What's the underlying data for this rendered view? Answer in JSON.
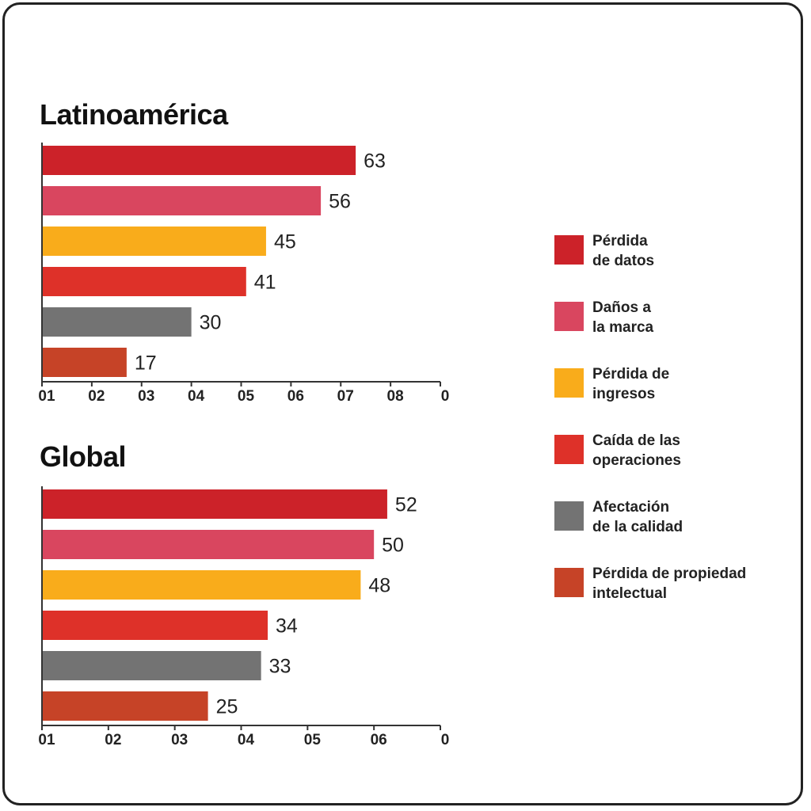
{
  "chart_data": [
    {
      "type": "bar",
      "orientation": "horizontal",
      "title": "Latinoamérica",
      "categories": [
        "Pérdida de datos",
        "Daños a la marca",
        "Pérdida de ingresos",
        "Caída de las operaciones",
        "Afectación de la calidad",
        "Pérdida de propiedad intelectual"
      ],
      "values": [
        63,
        56,
        45,
        41,
        30,
        17
      ],
      "colors": [
        "#cc2229",
        "#d9465f",
        "#f9ac1b",
        "#de3129",
        "#737373",
        "#c64327"
      ],
      "xticks": [
        "01",
        "02",
        "03",
        "04",
        "05",
        "06",
        "07",
        "08",
        "0"
      ],
      "xlim": [
        0,
        80
      ],
      "grid": false
    },
    {
      "type": "bar",
      "orientation": "horizontal",
      "title": "Global",
      "categories": [
        "Pérdida de datos",
        "Daños a la marca",
        "Pérdida de ingresos",
        "Caída de las operaciones",
        "Afectación de la calidad",
        "Pérdida de propiedad intelectual"
      ],
      "values": [
        52,
        50,
        48,
        34,
        33,
        25
      ],
      "colors": [
        "#cc2229",
        "#d9465f",
        "#f9ac1b",
        "#de3129",
        "#737373",
        "#c64327"
      ],
      "xticks": [
        "01",
        "02",
        "03",
        "04",
        "05",
        "06",
        "0"
      ],
      "xlim": [
        0,
        60
      ],
      "grid": false
    }
  ],
  "legend": {
    "placement": "right",
    "items": [
      {
        "label": "Pérdida\nde datos",
        "color": "#cc2229"
      },
      {
        "label": "Daños a\nla marca",
        "color": "#d9465f"
      },
      {
        "label": "Pérdida de\ningresos",
        "color": "#f9ac1b"
      },
      {
        "label": "Caída de las\noperaciones",
        "color": "#de3129"
      },
      {
        "label": "Afectación\nde la calidad",
        "color": "#737373"
      },
      {
        "label": "Pérdida de propiedad\nintelectual",
        "color": "#c64327"
      }
    ]
  }
}
